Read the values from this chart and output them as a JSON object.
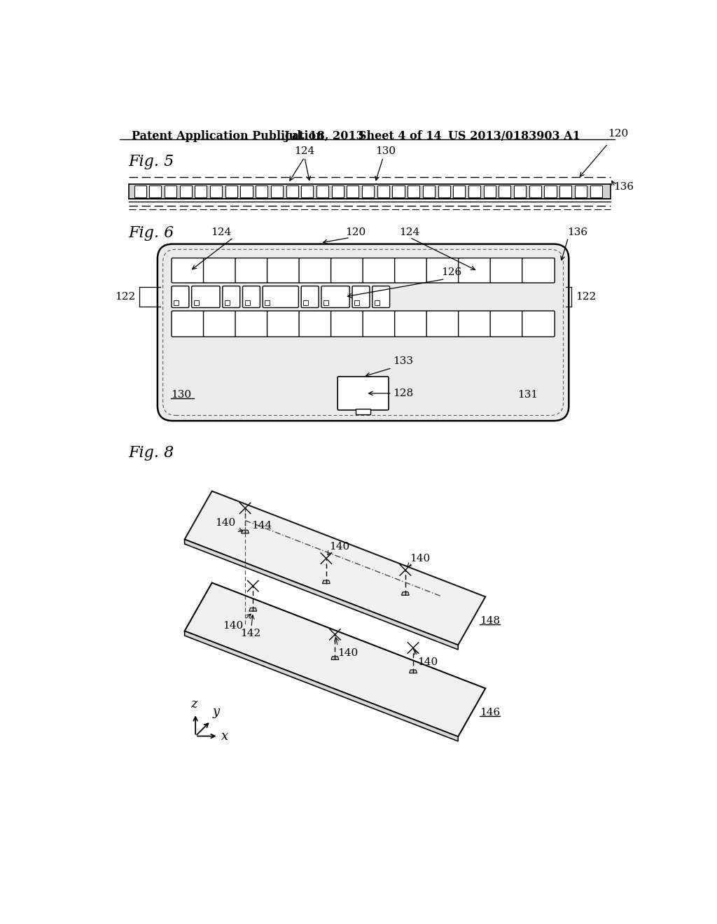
{
  "bg_color": "#ffffff",
  "header_text": "Patent Application Publication",
  "header_date": "Jul. 18, 2013",
  "header_sheet": "Sheet 4 of 14",
  "header_patent": "US 2013/0183903 A1",
  "fig5_label": "Fig. 5",
  "fig6_label": "Fig. 6",
  "fig8_label": "Fig. 8",
  "label_color": "#000000",
  "line_color": "#000000"
}
